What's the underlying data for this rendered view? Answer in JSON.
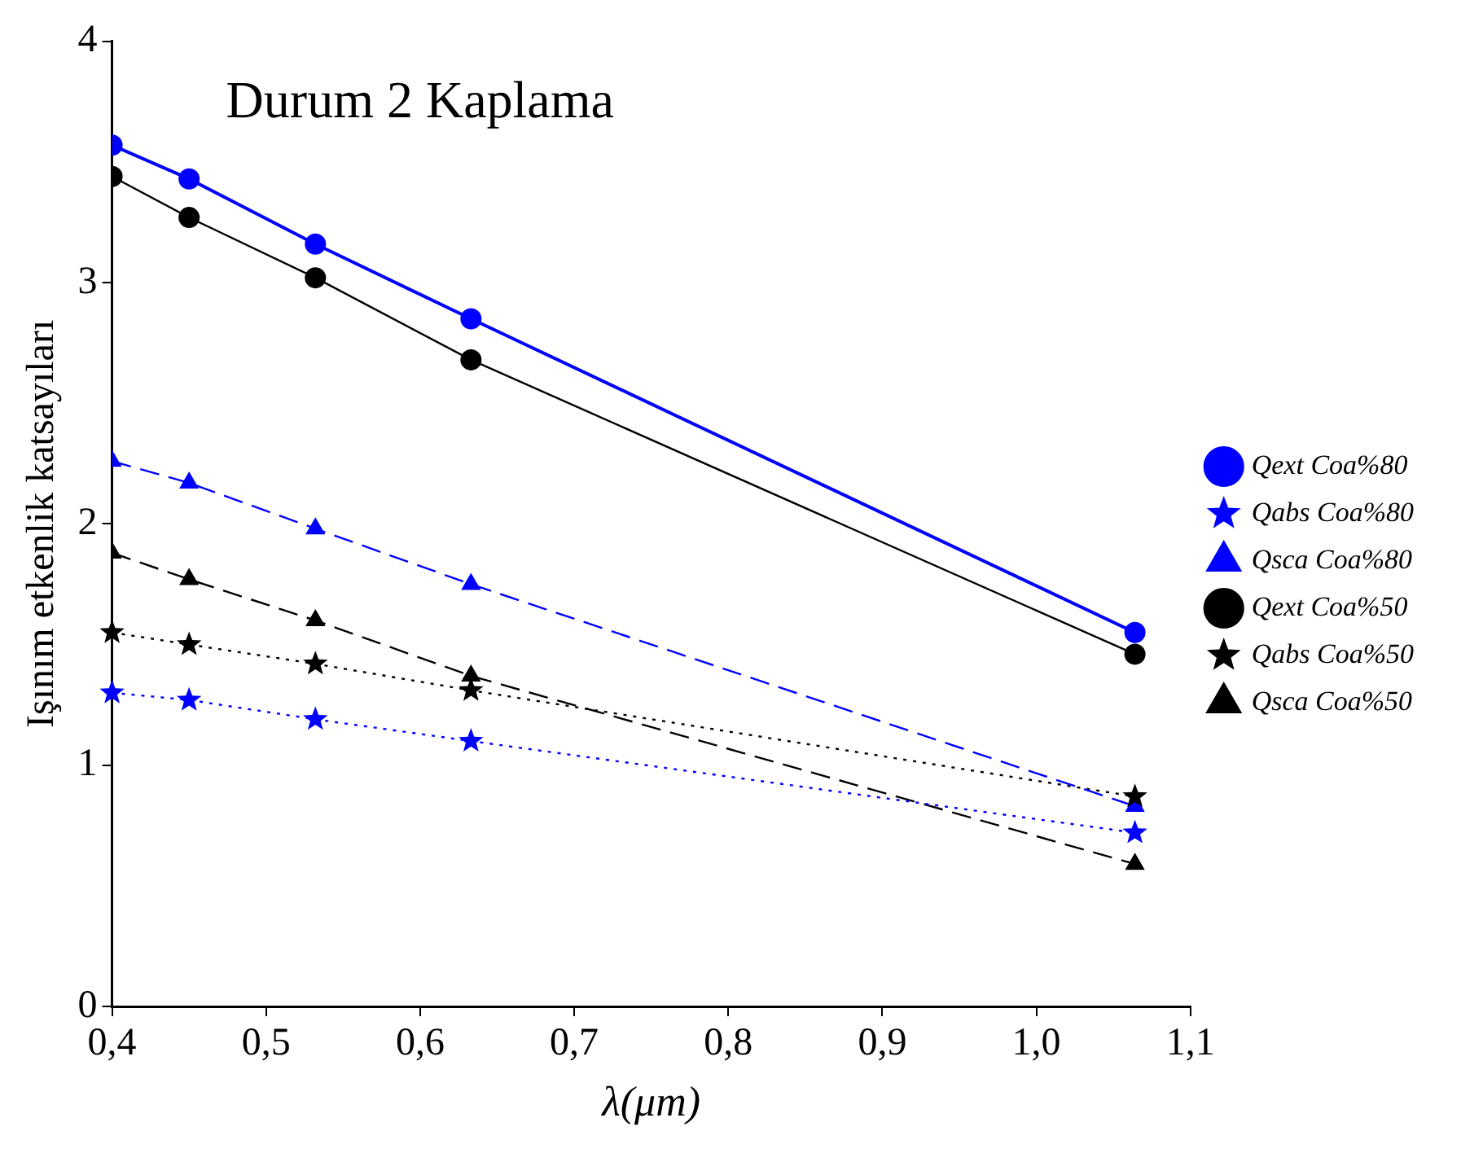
{
  "chart_data": {
    "type": "line",
    "title": "Durum 2 Kaplama",
    "xlabel": "λ(μm)",
    "ylabel": "Işınım etkenlik katsayıları",
    "x": [
      0.4,
      0.45,
      0.532,
      0.633,
      1.064
    ],
    "xlim": [
      0.4,
      1.1
    ],
    "xticks": [
      {
        "value": 0.4,
        "label": "0,4"
      },
      {
        "value": 0.5,
        "label": "0,5"
      },
      {
        "value": 0.6,
        "label": "0,6"
      },
      {
        "value": 0.7,
        "label": "0,7"
      },
      {
        "value": 0.8,
        "label": "0,8"
      },
      {
        "value": 0.9,
        "label": "0,9"
      },
      {
        "value": 1.0,
        "label": "1,0"
      },
      {
        "value": 1.1,
        "label": "1,1"
      }
    ],
    "ylim": [
      0,
      4
    ],
    "yticks": [
      0,
      1,
      2,
      3,
      4
    ],
    "grid": false,
    "legend": "right",
    "series": [
      {
        "name": "Qext Coa%80",
        "color": "#0000ff",
        "marker": "circle",
        "line_style": "solid",
        "values": [
          3.57,
          3.43,
          3.16,
          2.85,
          1.55
        ]
      },
      {
        "name": "Qabs Coa%80",
        "color": "#0000ff",
        "marker": "star",
        "line_style": "dotted",
        "values": [
          1.3,
          1.27,
          1.19,
          1.1,
          0.72
        ]
      },
      {
        "name": "Qsca Coa%80",
        "color": "#0000ff",
        "marker": "triangle",
        "line_style": "dashed",
        "values": [
          2.26,
          2.17,
          1.98,
          1.75,
          0.83
        ]
      },
      {
        "name": "Qext Coa%50",
        "color": "#000000",
        "marker": "circle",
        "line_style": "solid",
        "values": [
          3.44,
          3.27,
          3.02,
          2.68,
          1.46
        ]
      },
      {
        "name": "Qabs Coa%50",
        "color": "#000000",
        "marker": "star",
        "line_style": "dotted",
        "values": [
          1.55,
          1.5,
          1.42,
          1.31,
          0.87
        ]
      },
      {
        "name": "Qsca Coa%50",
        "color": "#000000",
        "marker": "triangle",
        "line_style": "dashed",
        "values": [
          1.88,
          1.77,
          1.6,
          1.37,
          0.59
        ]
      }
    ]
  }
}
